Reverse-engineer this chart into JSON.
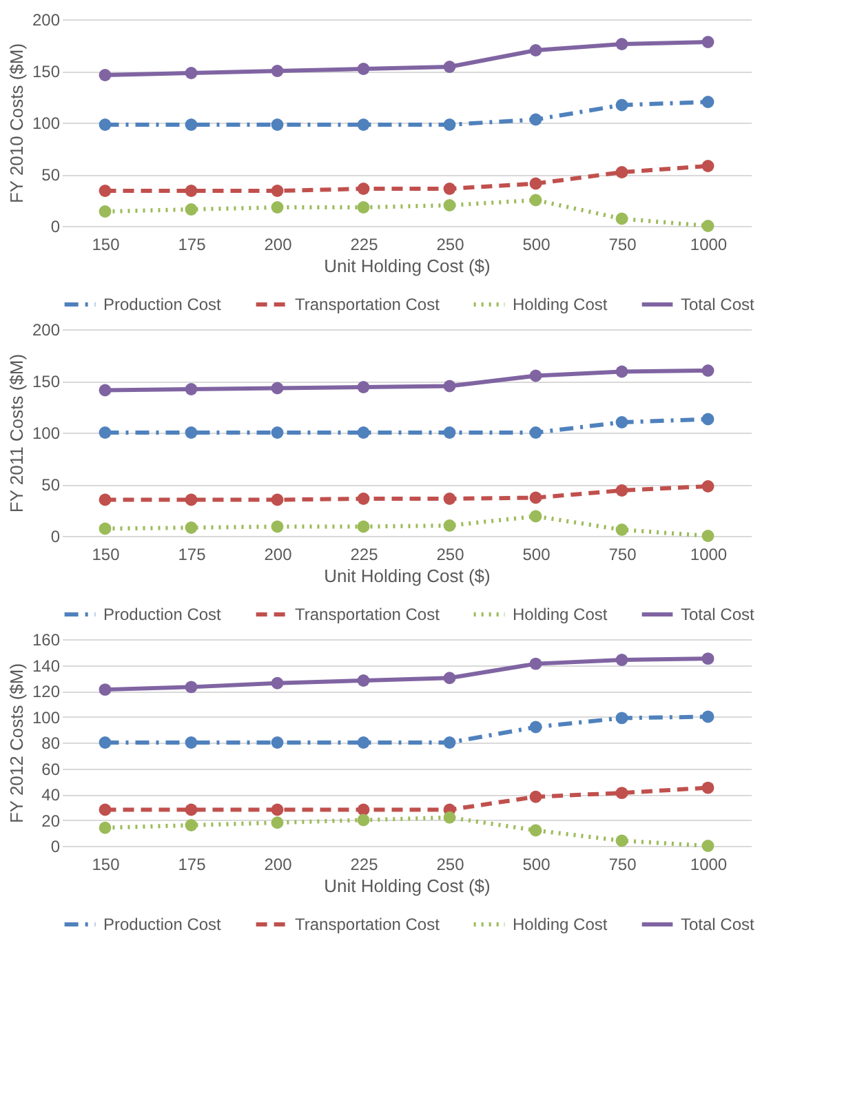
{
  "chart_data": [
    {
      "type": "line",
      "xlabel": "Unit Holding Cost ($)",
      "ylabel": "FY 2010 Costs ($M)",
      "categories": [
        "150",
        "175",
        "200",
        "225",
        "250",
        "500",
        "750",
        "1000"
      ],
      "ylim": [
        0,
        200
      ],
      "yticks": [
        0,
        50,
        100,
        150,
        200
      ],
      "grid": "y",
      "legend": "bottom",
      "marker": "circle",
      "series": [
        {
          "name": "Production Cost",
          "color": "#4f81bd",
          "line_style": "dashdot",
          "values": [
            98,
            98,
            98,
            98,
            98,
            103,
            117,
            120
          ]
        },
        {
          "name": "Transportation Cost",
          "color": "#c0504d",
          "line_style": "dashed",
          "values": [
            34,
            34,
            34,
            36,
            36,
            41,
            52,
            58
          ]
        },
        {
          "name": "Holding Cost",
          "color": "#9bbb59",
          "line_style": "dotted",
          "values": [
            14,
            16,
            18,
            18,
            20,
            25,
            7,
            0
          ]
        },
        {
          "name": "Total Cost",
          "color": "#8064a2",
          "line_style": "solid",
          "values": [
            146,
            148,
            150,
            152,
            154,
            170,
            176,
            178
          ]
        }
      ]
    },
    {
      "type": "line",
      "xlabel": "Unit Holding Cost ($)",
      "ylabel": "FY 2011 Costs ($M)",
      "categories": [
        "150",
        "175",
        "200",
        "225",
        "250",
        "500",
        "750",
        "1000"
      ],
      "ylim": [
        0,
        200
      ],
      "yticks": [
        0,
        50,
        100,
        150,
        200
      ],
      "grid": "y",
      "legend": "bottom",
      "marker": "circle",
      "series": [
        {
          "name": "Production Cost",
          "color": "#4f81bd",
          "line_style": "dashdot",
          "values": [
            100,
            100,
            100,
            100,
            100,
            100,
            110,
            113
          ]
        },
        {
          "name": "Transportation Cost",
          "color": "#c0504d",
          "line_style": "dashed",
          "values": [
            35,
            35,
            35,
            36,
            36,
            37,
            44,
            48
          ]
        },
        {
          "name": "Holding Cost",
          "color": "#9bbb59",
          "line_style": "dotted",
          "values": [
            7,
            8,
            9,
            9,
            10,
            19,
            6,
            0
          ]
        },
        {
          "name": "Total Cost",
          "color": "#8064a2",
          "line_style": "solid",
          "values": [
            141,
            142,
            143,
            144,
            145,
            155,
            159,
            160
          ]
        }
      ]
    },
    {
      "type": "line",
      "xlabel": "Unit Holding Cost ($)",
      "ylabel": "FY 2012 Costs ($M)",
      "categories": [
        "150",
        "175",
        "200",
        "225",
        "250",
        "500",
        "750",
        "1000"
      ],
      "ylim": [
        0,
        160
      ],
      "yticks": [
        0,
        20,
        40,
        60,
        80,
        100,
        120,
        140,
        160
      ],
      "grid": "y",
      "legend": "bottom",
      "marker": "circle",
      "series": [
        {
          "name": "Production Cost",
          "color": "#4f81bd",
          "line_style": "dashdot",
          "values": [
            80,
            80,
            80,
            80,
            80,
            92,
            99,
            100
          ]
        },
        {
          "name": "Transportation Cost",
          "color": "#c0504d",
          "line_style": "dashed",
          "values": [
            28,
            28,
            28,
            28,
            28,
            38,
            41,
            45
          ]
        },
        {
          "name": "Holding Cost",
          "color": "#9bbb59",
          "line_style": "dotted",
          "values": [
            14,
            16,
            18,
            20,
            22,
            12,
            4,
            0
          ]
        },
        {
          "name": "Total Cost",
          "color": "#8064a2",
          "line_style": "solid",
          "values": [
            121,
            123,
            126,
            128,
            130,
            141,
            144,
            145
          ]
        }
      ]
    }
  ]
}
